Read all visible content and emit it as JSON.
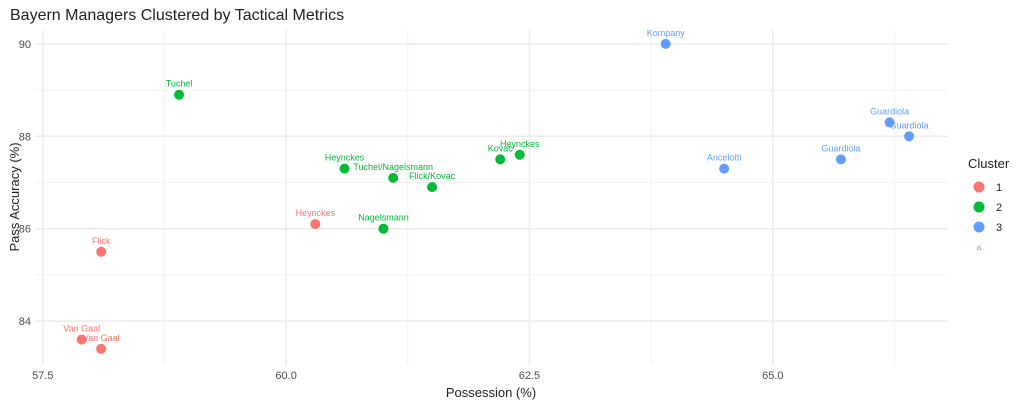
{
  "chart_data": {
    "type": "scatter",
    "title": "Bayern Managers Clustered by Tactical Metrics",
    "xlabel": "Possession (%)",
    "ylabel": "Pass Accuracy (%)",
    "xlim": [
      57.42,
      66.8
    ],
    "ylim": [
      83.05,
      90.3
    ],
    "xticks": [
      57.5,
      60.0,
      62.5,
      65.0
    ],
    "xtick_labels": [
      "57.5",
      "60.0",
      "62.5",
      "65.0"
    ],
    "yticks": [
      84,
      86,
      88,
      90
    ],
    "ytick_labels": [
      "84",
      "86",
      "88",
      "90"
    ],
    "grid": true,
    "legend": {
      "title": "Cluster",
      "placement": "right",
      "entries": [
        "1",
        "2",
        "3"
      ],
      "extra_text": "a"
    },
    "cluster_colors": {
      "1": "#F8766D",
      "2": "#00BA38",
      "3": "#619CFF"
    },
    "points": [
      {
        "label": "Kompany",
        "x": 63.9,
        "y": 90.0,
        "cluster": "3"
      },
      {
        "label": "Tuchel",
        "x": 58.9,
        "y": 88.9,
        "cluster": "2"
      },
      {
        "label": "Guardiola",
        "x": 66.2,
        "y": 88.3,
        "cluster": "3"
      },
      {
        "label": "Guardiola",
        "x": 66.4,
        "y": 88.0,
        "cluster": "3"
      },
      {
        "label": "Heynckes",
        "x": 62.4,
        "y": 87.6,
        "cluster": "2"
      },
      {
        "label": "Kovac",
        "x": 62.2,
        "y": 87.5,
        "cluster": "2"
      },
      {
        "label": "Guardiola",
        "x": 65.7,
        "y": 87.5,
        "cluster": "3"
      },
      {
        "label": "Heynckes",
        "x": 60.6,
        "y": 87.3,
        "cluster": "2"
      },
      {
        "label": "Ancelotti",
        "x": 64.5,
        "y": 87.3,
        "cluster": "3"
      },
      {
        "label": "Tuchel/Nagelsmann",
        "x": 61.1,
        "y": 87.1,
        "cluster": "2"
      },
      {
        "label": "Flick/Kovac",
        "x": 61.5,
        "y": 86.9,
        "cluster": "2"
      },
      {
        "label": "Heynckes",
        "x": 60.3,
        "y": 86.1,
        "cluster": "1"
      },
      {
        "label": "Nagelsmann",
        "x": 61.0,
        "y": 86.0,
        "cluster": "2"
      },
      {
        "label": "Flick",
        "x": 58.1,
        "y": 85.5,
        "cluster": "1"
      },
      {
        "label": "Van Gaal",
        "x": 57.9,
        "y": 83.6,
        "cluster": "1"
      },
      {
        "label": "Van Gaal",
        "x": 58.1,
        "y": 83.4,
        "cluster": "1"
      }
    ]
  }
}
